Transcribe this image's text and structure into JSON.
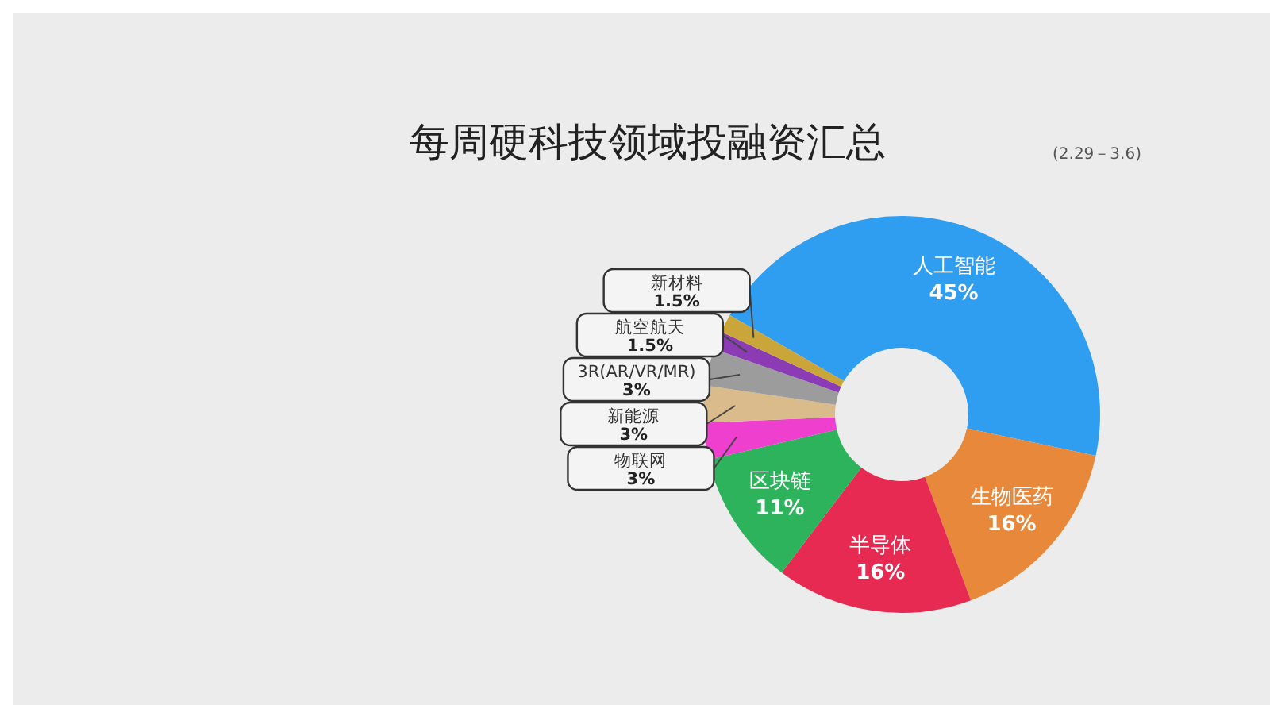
{
  "chart_data": {
    "type": "donut",
    "title": "每周硬科技领域投融资汇总",
    "subtitle": "(2.29－3.6)",
    "categories": [
      "人工智能",
      "生物医药",
      "半导体",
      "区块链",
      "物联网",
      "新能源",
      "3R(AR/VR/MR)",
      "航空航天",
      "新材料"
    ],
    "values": [
      45,
      16,
      16,
      11,
      3,
      3,
      3,
      1.5,
      1.5
    ],
    "colors": [
      "#2f9df0",
      "#e8883a",
      "#e62a52",
      "#2db35c",
      "#ee3fcf",
      "#d9bb8c",
      "#9c9c9c",
      "#8b3cb4",
      "#c9a53a"
    ],
    "value_labels": [
      "45%",
      "16%",
      "16%",
      "11%",
      "3%",
      "3%",
      "3%",
      "1.5%",
      "1.5%"
    ]
  }
}
